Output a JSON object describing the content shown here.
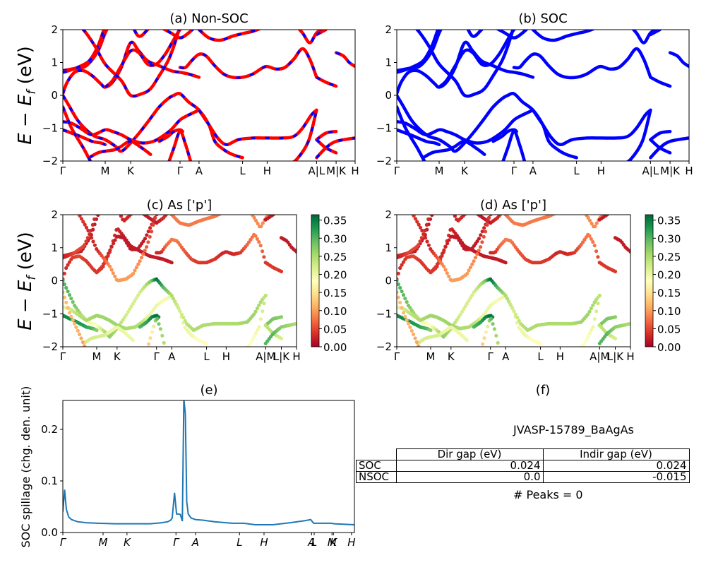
{
  "figure": {
    "material_id": "JVASP-15789_BaAgAs",
    "peaks_text": "# Peaks = 0",
    "colors": {
      "nonsoc_line": "#ff0000",
      "nonsoc_dash": "#0000ff",
      "soc_line": "#0000ff",
      "spillage_line": "#1f77b4",
      "colormap": "RdYlGn"
    }
  },
  "chart_data": [
    {
      "id": "a",
      "type": "line",
      "title": "(a) Non-SOC",
      "ylabel": "E − E_f (eV)",
      "ylim": [
        -2,
        2
      ],
      "yticks": [
        "2",
        "1",
        "0",
        "−1",
        "−2"
      ],
      "yticks_values": [
        2,
        1,
        0,
        -1,
        -2
      ],
      "xticks": [
        "Γ",
        "M",
        "K",
        "Γ",
        "A",
        "L",
        "H",
        "A|L",
        "M|K",
        "H"
      ],
      "xticks_pos": [
        0,
        0.145,
        0.232,
        0.401,
        0.466,
        0.615,
        0.699,
        0.868,
        0.935,
        1.0
      ],
      "style": "red solid with blue dashes"
    },
    {
      "id": "b",
      "type": "line",
      "title": "(b) SOC",
      "ylim": [
        -2,
        2
      ],
      "yticks": [
        "2",
        "1",
        "0",
        "−1",
        "−2"
      ],
      "yticks_values": [
        2,
        1,
        0,
        -1,
        -2
      ],
      "xticks": [
        "Γ",
        "M",
        "K",
        "Γ",
        "A",
        "L",
        "H",
        "A|L",
        "M|K",
        "H"
      ],
      "xticks_pos": [
        0,
        0.145,
        0.232,
        0.401,
        0.466,
        0.615,
        0.699,
        0.868,
        0.935,
        1.0
      ],
      "style": "blue solid"
    },
    {
      "id": "c",
      "type": "scatter",
      "title": "(c)  As ['p']",
      "ylabel": "E − E_f (eV)",
      "ylim": [
        -2,
        2
      ],
      "yticks": [
        "2",
        "1",
        "0",
        "−1",
        "−2"
      ],
      "yticks_values": [
        2,
        1,
        0,
        -1,
        -2
      ],
      "xticks": [
        "Γ",
        "M",
        "K",
        "Γ",
        "A",
        "L",
        "H",
        "A|M",
        "L|K",
        "H"
      ],
      "xticks_pos": [
        0,
        0.145,
        0.232,
        0.401,
        0.466,
        0.615,
        0.699,
        0.868,
        0.935,
        1.0
      ],
      "colorbar": {
        "min": 0.0,
        "max": 0.365,
        "ticks": [
          "0.00",
          "0.05",
          "0.10",
          "0.15",
          "0.20",
          "0.25",
          "0.30",
          "0.35"
        ],
        "tick_values": [
          0,
          0.05,
          0.1,
          0.15,
          0.2,
          0.25,
          0.3,
          0.35
        ]
      }
    },
    {
      "id": "d",
      "type": "scatter",
      "title": "(d) As ['p']",
      "ylim": [
        -2,
        2
      ],
      "yticks": [
        "2",
        "1",
        "0",
        "−1",
        "−2"
      ],
      "yticks_values": [
        2,
        1,
        0,
        -1,
        -2
      ],
      "xticks": [
        "Γ",
        "M",
        "K",
        "Γ",
        "A",
        "L",
        "H",
        "A|M",
        "L|K",
        "H"
      ],
      "xticks_pos": [
        0,
        0.145,
        0.232,
        0.401,
        0.466,
        0.615,
        0.699,
        0.868,
        0.935,
        1.0
      ],
      "colorbar": {
        "min": 0.0,
        "max": 0.365,
        "ticks": [
          "0.00",
          "0.05",
          "0.10",
          "0.15",
          "0.20",
          "0.25",
          "0.30",
          "0.35"
        ],
        "tick_values": [
          0,
          0.05,
          0.1,
          0.15,
          0.2,
          0.25,
          0.3,
          0.35
        ]
      }
    },
    {
      "id": "e",
      "type": "line",
      "title": "(e)",
      "ylabel": "SOC spillage (chg. den. unit)",
      "ylim": [
        0,
        0.256
      ],
      "yticks": [
        "0.0",
        "0.1",
        "0.2"
      ],
      "yticks_values": [
        0,
        0.1,
        0.2
      ],
      "xticks": [
        "Γ",
        "M",
        "K",
        "Γ",
        "A",
        "L",
        "H",
        "A",
        "L",
        "M",
        "K",
        "H"
      ],
      "xticks_pos": [
        0,
        0.138,
        0.22,
        0.388,
        0.455,
        0.606,
        0.69,
        0.853,
        0.862,
        0.923,
        0.928,
        0.99
      ],
      "x": [
        0,
        0.006,
        0.012,
        0.02,
        0.03,
        0.05,
        0.08,
        0.12,
        0.18,
        0.22,
        0.3,
        0.34,
        0.36,
        0.37,
        0.375,
        0.383,
        0.39,
        0.395,
        0.403,
        0.41,
        0.415,
        0.42,
        0.425,
        0.43,
        0.44,
        0.455,
        0.48,
        0.52,
        0.58,
        0.62,
        0.66,
        0.72,
        0.78,
        0.83,
        0.85,
        0.86,
        0.88,
        0.92,
        0.93,
        1.0
      ],
      "y": [
        0.04,
        0.083,
        0.045,
        0.03,
        0.025,
        0.021,
        0.019,
        0.018,
        0.017,
        0.017,
        0.017,
        0.019,
        0.021,
        0.024,
        0.028,
        0.077,
        0.036,
        0.036,
        0.035,
        0.022,
        0.26,
        0.23,
        0.06,
        0.036,
        0.028,
        0.025,
        0.024,
        0.021,
        0.018,
        0.018,
        0.015,
        0.015,
        0.019,
        0.023,
        0.025,
        0.018,
        0.018,
        0.018,
        0.017,
        0.015
      ]
    },
    {
      "id": "f",
      "type": "table",
      "title": "(f)",
      "header": [
        "",
        "Dir gap (eV)",
        "Indir gap (eV)"
      ],
      "rows": [
        {
          "label": "SOC",
          "dir": "0.024",
          "indir": "0.024"
        },
        {
          "label": "NSOC",
          "dir": "0.0",
          "indir": "-0.015"
        }
      ]
    }
  ],
  "bands": [
    {
      "k": [
        0,
        0.04,
        0.08,
        0.12,
        0.145,
        0.17,
        0.2,
        0.232,
        0.28,
        0.33,
        0.37,
        0.401,
        0.43,
        0.466
      ],
      "e": [
        0.75,
        0.82,
        0.9,
        1.35,
        1.9,
        2.3,
        2.5,
        2.6,
        2.4,
        2.1,
        1.9,
        1.75,
        1.9,
        2.2
      ],
      "w": [
        0.03,
        0.03,
        0.02,
        0.02,
        0.02,
        0.03,
        0.03,
        0.03,
        0.02,
        0.02,
        0.02,
        0.02,
        0.03,
        0.03
      ]
    },
    {
      "k": [
        0,
        0.02,
        0.05,
        0.09,
        0.12,
        0.145,
        0.17,
        0.2,
        0.232,
        0.26,
        0.29,
        0.32
      ],
      "e": [
        0.7,
        0.75,
        0.85,
        1.05,
        1.5,
        2.1,
        2.5,
        2.5,
        2.2,
        1.8,
        2.0,
        2.3
      ],
      "w": [
        0.02,
        0.03,
        0.05,
        0.05,
        0.03,
        0.03,
        0.02,
        0.02,
        0.02,
        0.03,
        0.03,
        0.03
      ]
    },
    {
      "k": [
        0,
        0.015,
        0.04,
        0.07,
        0.1,
        0.13,
        0.145,
        0.17,
        0.2,
        0.232,
        0.26,
        0.29,
        0.33,
        0.37,
        0.401,
        0.43,
        0.466
      ],
      "e": [
        0.05,
        0.4,
        0.7,
        0.75,
        0.6,
        0.35,
        0.25,
        0.4,
        0.85,
        1.6,
        1.35,
        1.05,
        0.9,
        0.75,
        0.7,
        0.65,
        0.55
      ],
      "w": [
        0.05,
        0.03,
        0.04,
        0.05,
        0.04,
        0.04,
        0.04,
        0.03,
        0.04,
        0.03,
        0.02,
        0.02,
        0.02,
        0.02,
        0.02,
        0.02,
        0.02
      ]
    },
    {
      "k": [
        0.145,
        0.17,
        0.2,
        0.232,
        0.26,
        0.29,
        0.32,
        0.35,
        0.38,
        0.401,
        0.43,
        0.466
      ],
      "e": [
        0.25,
        0.45,
        0.9,
        1.35,
        1.3,
        0.95,
        0.95,
        1.25,
        1.7,
        2.0,
        2.2,
        2.5
      ],
      "w": [
        0.04,
        0.04,
        0.03,
        0.02,
        0.02,
        0.02,
        0.02,
        0.02,
        0.03,
        0.03,
        0.03,
        0.03
      ]
    },
    {
      "k": [
        0.03,
        0.07,
        0.11,
        0.145,
        0.2,
        0.232,
        0.27,
        0.3,
        0.33,
        0.36,
        0.38,
        0.401
      ],
      "e": [
        2.3,
        2.0,
        1.5,
        0.95,
        0.45,
        0.0,
        0.05,
        0.2,
        0.6,
        1.05,
        1.5,
        2.1
      ],
      "w": [
        0.04,
        0.04,
        0.03,
        0.03,
        0.09,
        0.1,
        0.1,
        0.1,
        0.09,
        0.06,
        0.05,
        0.04
      ]
    },
    {
      "k": [
        0.401,
        0.42,
        0.44,
        0.466,
        0.49,
        0.52,
        0.55,
        0.58,
        0.615,
        0.65,
        0.68,
        0.699,
        0.73,
        0.76,
        0.79,
        0.82,
        0.845,
        0.868
      ],
      "e": [
        0.85,
        0.85,
        1.05,
        1.25,
        1.2,
        0.9,
        0.65,
        0.55,
        0.55,
        0.65,
        0.82,
        0.88,
        0.8,
        0.85,
        1.1,
        1.42,
        1.1,
        0.55
      ],
      "w": [
        0.03,
        0.03,
        0.07,
        0.08,
        0.08,
        0.06,
        0.05,
        0.04,
        0.04,
        0.04,
        0.03,
        0.03,
        0.03,
        0.04,
        0.07,
        0.08,
        0.08,
        0.04
      ]
    },
    {
      "k": [
        0.466,
        0.5,
        0.54,
        0.58,
        0.615,
        0.65,
        0.68
      ],
      "e": [
        2.0,
        1.75,
        1.68,
        1.8,
        1.88,
        1.95,
        2.05
      ],
      "w": [
        0.08,
        0.08,
        0.08,
        0.08,
        0.08,
        0.08,
        0.08
      ]
    },
    {
      "k": [
        0.79,
        0.82,
        0.845,
        0.868,
        0.9
      ],
      "e": [
        2.2,
        1.9,
        1.6,
        1.9,
        2.1
      ],
      "w": [
        0.09,
        0.09,
        0.09,
        0.09,
        0.09
      ]
    },
    {
      "k": [
        0.868,
        0.9,
        0.935
      ],
      "e": [
        0.55,
        0.4,
        0.28
      ],
      "w": [
        0.04,
        0.04,
        0.04
      ]
    },
    {
      "k": [
        0.935,
        0.96,
        0.98,
        1.0
      ],
      "e": [
        1.3,
        1.2,
        1.0,
        0.88
      ],
      "w": [
        0.02,
        0.02,
        0.02,
        0.02
      ]
    },
    {
      "k": [
        0.868,
        0.9
      ],
      "e": [
        1.85,
        2.0
      ],
      "w": [
        0.02,
        0.02
      ]
    },
    {
      "k": [
        0,
        0.02,
        0.05,
        0.08,
        0.11,
        0.145,
        0.18,
        0.2,
        0.232,
        0.27,
        0.3,
        0.33,
        0.36,
        0.38,
        0.401,
        0.43,
        0.466,
        0.5,
        0.52,
        0.55,
        0.58,
        0.615
      ],
      "e": [
        0.0,
        -0.3,
        -0.75,
        -1.05,
        -1.25,
        -1.35,
        -1.55,
        -1.7,
        -1.45,
        -1.05,
        -0.7,
        -0.35,
        -0.1,
        0.0,
        0.05,
        -0.2,
        -0.45,
        -0.9,
        -1.4,
        -1.65,
        -1.8,
        -1.9
      ],
      "w": [
        0.3,
        0.3,
        0.28,
        0.25,
        0.2,
        0.18,
        0.25,
        0.27,
        0.25,
        0.22,
        0.22,
        0.22,
        0.25,
        0.28,
        0.36,
        0.3,
        0.25,
        0.22,
        0.2,
        0.2,
        0.18,
        0.18
      ]
    },
    {
      "k": [
        0,
        0.03,
        0.06,
        0.1,
        0.145,
        0.17,
        0.2,
        0.232,
        0.27,
        0.31,
        0.34,
        0.37,
        0.401,
        0.43,
        0.466
      ],
      "e": [
        -0.8,
        -0.85,
        -1.0,
        -1.2,
        -1.05,
        -1.1,
        -1.2,
        -1.35,
        -1.45,
        -1.4,
        -1.25,
        -1.05,
        -0.75,
        -0.6,
        -0.45
      ],
      "w": [
        0.2,
        0.22,
        0.24,
        0.25,
        0.26,
        0.26,
        0.26,
        0.26,
        0.25,
        0.25,
        0.24,
        0.2,
        0.2,
        0.19,
        0.2
      ]
    },
    {
      "k": [
        0,
        0.03,
        0.06,
        0.1,
        0.13,
        0.145
      ],
      "e": [
        -1.05,
        -1.15,
        -1.25,
        -1.4,
        -1.45,
        -1.5
      ],
      "w": [
        0.34,
        0.34,
        0.33,
        0.32,
        0.3,
        0.27
      ]
    },
    {
      "k": [
        0.33,
        0.36,
        0.38,
        0.401,
        0.41
      ],
      "e": [
        -1.4,
        -1.25,
        -1.1,
        -1.05,
        -1.1
      ],
      "w": [
        0.3,
        0.32,
        0.34,
        0.36,
        0.34
      ]
    },
    {
      "k": [
        0.466,
        0.5,
        0.53,
        0.56,
        0.6,
        0.65,
        0.7,
        0.75,
        0.79,
        0.82,
        0.85,
        0.868
      ],
      "e": [
        -0.45,
        -0.9,
        -1.3,
        -1.5,
        -1.35,
        -1.3,
        -1.3,
        -1.3,
        -1.25,
        -1.0,
        -0.6,
        -0.45
      ],
      "w": [
        0.25,
        0.22,
        0.24,
        0.25,
        0.25,
        0.25,
        0.25,
        0.25,
        0.26,
        0.26,
        0.25,
        0.23
      ]
    },
    {
      "k": [
        0.868,
        0.9,
        0.935
      ],
      "e": [
        -1.35,
        -1.15,
        -1.1
      ],
      "w": [
        0.28,
        0.28,
        0.27
      ]
    },
    {
      "k": [
        0.868,
        0.9,
        0.935
      ],
      "e": [
        -1.35,
        -1.6,
        -1.75
      ],
      "w": [
        0.24,
        0.24,
        0.22
      ]
    },
    {
      "k": [
        0.868,
        0.9,
        0.935,
        1.0
      ],
      "e": [
        -1.9,
        -1.6,
        -1.4,
        -1.3
      ],
      "w": [
        0.3,
        0.3,
        0.27,
        0.25
      ]
    },
    {
      "k": [
        0.09,
        0.12,
        0.145,
        0.18,
        0.2,
        0.232,
        0.27,
        0.3
      ],
      "e": [
        -1.9,
        -1.75,
        -1.7,
        -1.65,
        -1.55,
        -1.4,
        -1.6,
        -1.8
      ],
      "w": [
        0.22,
        0.22,
        0.22,
        0.22,
        0.2,
        0.2,
        0.2,
        0.2
      ]
    },
    {
      "k": [
        0,
        0.03,
        0.07,
        0.1
      ],
      "e": [
        -0.35,
        -1.0,
        -1.6,
        -2.1
      ],
      "w": [
        0.12,
        0.12,
        0.11,
        0.1
      ]
    },
    {
      "k": [
        0.36,
        0.38,
        0.401,
        0.42,
        0.44
      ],
      "e": [
        -2.1,
        -1.6,
        -1.1,
        -1.5,
        -2.1
      ],
      "w": [
        0.12,
        0.15,
        0.3,
        0.26,
        0.24
      ]
    },
    {
      "k": [
        0.77,
        0.8,
        0.84,
        0.868
      ],
      "e": [
        -2.1,
        -1.95,
        -1.4,
        -0.45
      ],
      "w": [
        0.18,
        0.18,
        0.2,
        0.24
      ]
    }
  ]
}
